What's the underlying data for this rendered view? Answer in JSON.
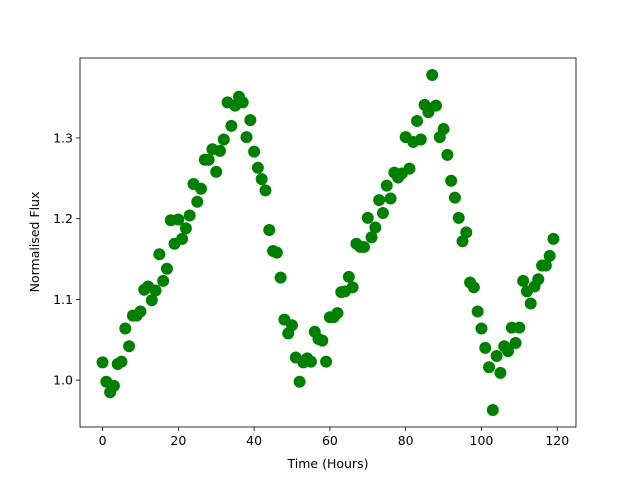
{
  "chart_data": {
    "type": "scatter",
    "xlabel": "Time (Hours)",
    "ylabel": "Normalised Flux",
    "x": [
      0,
      1,
      2,
      3,
      4,
      5,
      6,
      7,
      8,
      9,
      10,
      11,
      12,
      13,
      14,
      15,
      16,
      17,
      18,
      19,
      20,
      21,
      22,
      23,
      24,
      25,
      26,
      27,
      28,
      29,
      30,
      31,
      32,
      33,
      34,
      35,
      36,
      37,
      38,
      39,
      40,
      41,
      42,
      43,
      44,
      45,
      46,
      47,
      48,
      49,
      50,
      51,
      52,
      53,
      54,
      55,
      56,
      57,
      58,
      59,
      60,
      61,
      62,
      63,
      64,
      65,
      66,
      67,
      68,
      69,
      70,
      71,
      72,
      73,
      74,
      75,
      76,
      77,
      78,
      79,
      80,
      81,
      82,
      83,
      84,
      85,
      86,
      87,
      88,
      89,
      90,
      91,
      92,
      93,
      94,
      95,
      96,
      97,
      98,
      99,
      100,
      101,
      102,
      103,
      104,
      105,
      106,
      107,
      108,
      109,
      110,
      111,
      112,
      113,
      114,
      115,
      116,
      117,
      118,
      119
    ],
    "series": [
      {
        "color": "#008000",
        "values": [
          1.022,
          0.998,
          0.985,
          0.993,
          1.02,
          1.023,
          1.064,
          1.042,
          1.08,
          1.08,
          1.085,
          1.112,
          1.116,
          1.099,
          1.111,
          1.156,
          1.123,
          1.138,
          1.198,
          1.169,
          1.199,
          1.175,
          1.188,
          1.204,
          1.243,
          1.221,
          1.237,
          1.273,
          1.273,
          1.286,
          1.258,
          1.284,
          1.298,
          1.344,
          1.315,
          1.34,
          1.351,
          1.344,
          1.301,
          1.322,
          1.283,
          1.263,
          1.249,
          1.235,
          1.186,
          1.16,
          1.158,
          1.127,
          1.075,
          1.058,
          1.068,
          1.028,
          0.998,
          1.022,
          1.027,
          1.023,
          1.06,
          1.051,
          1.049,
          1.023,
          1.078,
          1.078,
          1.083,
          1.109,
          1.11,
          1.128,
          1.115,
          1.169,
          1.165,
          1.165,
          1.201,
          1.177,
          1.189,
          1.223,
          1.207,
          1.241,
          1.225,
          1.257,
          1.251,
          1.256,
          1.301,
          1.262,
          1.295,
          1.321,
          1.298,
          1.341,
          1.332,
          1.378,
          1.34,
          1.301,
          1.311,
          1.279,
          1.247,
          1.226,
          1.201,
          1.172,
          1.183,
          1.121,
          1.115,
          1.085,
          1.064,
          1.04,
          1.016,
          0.963,
          1.03,
          1.009,
          1.042,
          1.036,
          1.065,
          1.046,
          1.065,
          1.123,
          1.11,
          1.095,
          1.116,
          1.125,
          1.142,
          1.142,
          1.154,
          1.175
        ]
      }
    ],
    "xlim": [
      -5.95,
      124.95
    ],
    "xticks": [
      0,
      20,
      40,
      60,
      80,
      100,
      120
    ],
    "ylim": [
      0.942,
      1.399
    ],
    "yticks": [
      {
        "value": 1,
        "label": "1.0"
      },
      1.1,
      1.2,
      1.3
    ]
  }
}
